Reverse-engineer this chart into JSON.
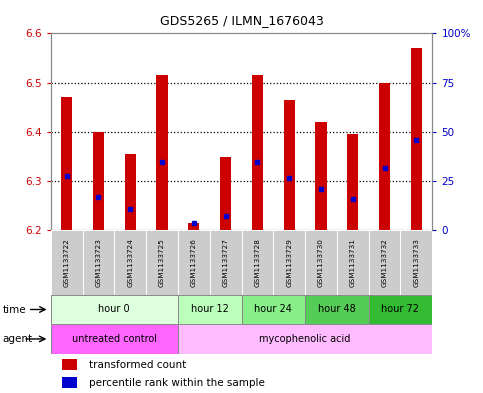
{
  "title": "GDS5265 / ILMN_1676043",
  "samples": [
    "GSM1133722",
    "GSM1133723",
    "GSM1133724",
    "GSM1133725",
    "GSM1133726",
    "GSM1133727",
    "GSM1133728",
    "GSM1133729",
    "GSM1133730",
    "GSM1133731",
    "GSM1133732",
    "GSM1133733"
  ],
  "bar_bottom": 6.2,
  "bar_tops": [
    6.47,
    6.4,
    6.355,
    6.515,
    6.215,
    6.348,
    6.515,
    6.465,
    6.42,
    6.395,
    6.5,
    6.57
  ],
  "percentile_vals": [
    6.31,
    6.268,
    6.243,
    6.338,
    6.215,
    6.228,
    6.338,
    6.305,
    6.283,
    6.262,
    6.325,
    6.382
  ],
  "ylim_left": [
    6.2,
    6.6
  ],
  "ylim_right": [
    0,
    100
  ],
  "yticks_left": [
    6.2,
    6.3,
    6.4,
    6.5,
    6.6
  ],
  "yticks_right": [
    0,
    25,
    50,
    75,
    100
  ],
  "ytick_right_labels": [
    "0",
    "25",
    "50",
    "75",
    "100%"
  ],
  "bar_color": "#cc0000",
  "percentile_color": "#0000cc",
  "bar_width": 0.35,
  "time_groups": [
    {
      "label": "hour 0",
      "start": 0,
      "end": 4,
      "color": "#ddffdd"
    },
    {
      "label": "hour 12",
      "start": 4,
      "end": 6,
      "color": "#bbffbb"
    },
    {
      "label": "hour 24",
      "start": 6,
      "end": 8,
      "color": "#88ee88"
    },
    {
      "label": "hour 48",
      "start": 8,
      "end": 10,
      "color": "#55cc55"
    },
    {
      "label": "hour 72",
      "start": 10,
      "end": 12,
      "color": "#33bb33"
    }
  ],
  "agent_groups": [
    {
      "label": "untreated control",
      "start": 0,
      "end": 4,
      "color": "#ff66ff"
    },
    {
      "label": "mycophenolic acid",
      "start": 4,
      "end": 12,
      "color": "#ffbbff"
    }
  ],
  "legend_items": [
    {
      "color": "#cc0000",
      "label": "transformed count"
    },
    {
      "color": "#0000cc",
      "label": "percentile rank within the sample"
    }
  ],
  "sample_bg_color": "#cccccc",
  "left_tick_color": "#cc0000",
  "right_tick_color": "#0000cc",
  "grid_yticks": [
    6.3,
    6.4,
    6.5
  ],
  "border_color": "#888888"
}
